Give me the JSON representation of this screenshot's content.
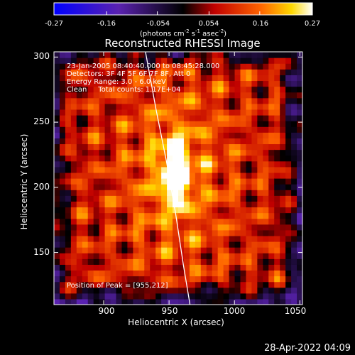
{
  "colorbar": {
    "ticks": [
      "-0.27",
      "-0.16",
      "-0.054",
      "0.054",
      "0.16",
      "0.27"
    ],
    "tick_values": [
      -0.27,
      -0.16,
      -0.054,
      0.054,
      0.16,
      0.27
    ],
    "range": [
      -0.27,
      0.27
    ],
    "unit_parts": [
      "(photons cm",
      "-2",
      " s",
      "-1",
      " asec",
      "-2",
      ")"
    ]
  },
  "chart_data": {
    "type": "heatmap",
    "title": "Reconstructed RHESSI Image",
    "xlabel": "Heliocentric X (arcsec)",
    "ylabel": "Heliocentric Y (arcsec)",
    "xlim": [
      862,
      1052
    ],
    "ylim": [
      110,
      304
    ],
    "xticks": [
      900,
      950,
      1000,
      1050
    ],
    "yticks": [
      150,
      200,
      250,
      300
    ],
    "colormap": "red-temperature (blue-purple negative, red-yellow-white positive)",
    "peak": [
      955,
      212
    ],
    "peak_value": 0.27,
    "annotations": [
      "23-Jan-2005 08:40:40.000 to 08:45:28.000",
      "Detectors: 3F 4F 5F 6F 7F 8F, Att 0",
      "Energy Range: 3.0 - 6.0 keV",
      "Clean     Total counts: 1.17E+04"
    ],
    "peak_label": "Position of Peak = [955,212]",
    "limb": [
      [
        932,
        304
      ],
      [
        940,
        260
      ],
      [
        948,
        220
      ],
      [
        955,
        180
      ],
      [
        961,
        140
      ],
      [
        966,
        110
      ]
    ]
  },
  "footer": {
    "date": "28-Apr-2022 04:09"
  }
}
